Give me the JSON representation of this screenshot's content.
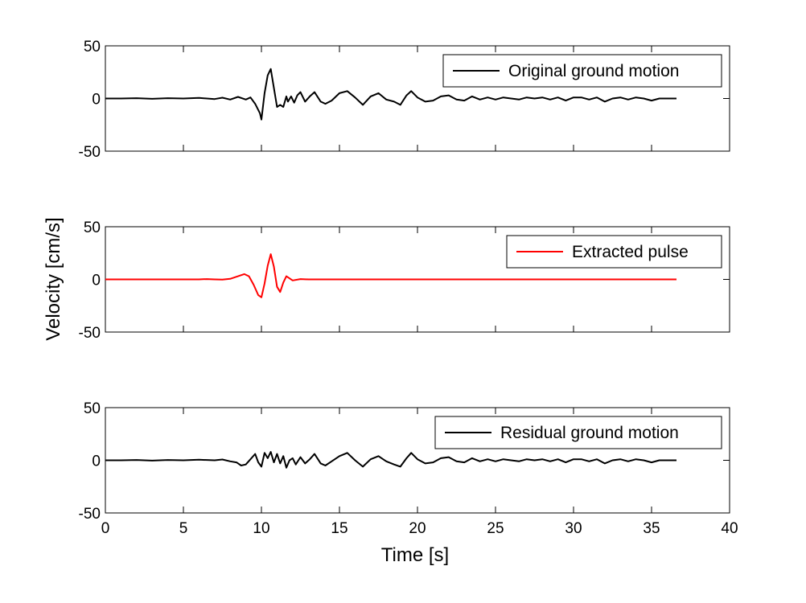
{
  "chart_data": {
    "type": "line",
    "xlabel": "Time [s]",
    "ylabel": "Velocity [cm/s]",
    "xlim": [
      0,
      40
    ],
    "ylim": [
      -50,
      50
    ],
    "xticks": [
      0,
      5,
      10,
      15,
      20,
      25,
      30,
      35,
      40
    ],
    "yticks": [
      -50,
      0,
      50
    ],
    "grid": false,
    "panels": [
      {
        "legend": "Original ground motion",
        "legend_position": "top-right",
        "color": "#000000",
        "x": [
          0,
          1,
          2,
          3,
          4,
          5,
          6,
          7,
          7.5,
          8,
          8.5,
          9,
          9.3,
          9.6,
          9.9,
          10.0,
          10.2,
          10.4,
          10.6,
          10.8,
          11.0,
          11.2,
          11.4,
          11.6,
          11.7,
          11.9,
          12.1,
          12.3,
          12.5,
          12.8,
          13.1,
          13.4,
          13.8,
          14.1,
          14.5,
          15.0,
          15.5,
          16.0,
          16.5,
          17.0,
          17.5,
          18.0,
          18.5,
          18.9,
          19.3,
          19.6,
          20.0,
          20.5,
          21.0,
          21.5,
          22.0,
          22.5,
          23.0,
          23.5,
          24.0,
          24.5,
          25.0,
          25.5,
          26.0,
          26.5,
          27.0,
          27.5,
          28.0,
          28.5,
          29.0,
          29.5,
          30.0,
          30.5,
          31.0,
          31.5,
          32.0,
          32.5,
          33.0,
          33.5,
          34.0,
          34.5,
          35.0,
          35.5,
          36.0,
          36.6
        ],
        "y": [
          0,
          0,
          0.3,
          -0.3,
          0.3,
          0,
          0.5,
          -0.5,
          0.8,
          -1,
          1.5,
          -1,
          1,
          -5,
          -14,
          -20,
          5,
          22,
          28,
          10,
          -8,
          -6,
          -8,
          2,
          -3,
          2,
          -4,
          3,
          6,
          -3,
          2,
          6,
          -3,
          -5,
          -2,
          5,
          7,
          1,
          -6,
          2,
          5,
          -1,
          -3,
          -6,
          3,
          7,
          1,
          -3,
          -2,
          2,
          3,
          -1,
          -2,
          2,
          -1,
          1,
          -1,
          1,
          0,
          -1,
          1,
          0,
          1,
          -1,
          1,
          -2,
          1,
          1,
          -1,
          1,
          -3,
          0,
          1,
          -1,
          1,
          0,
          -2,
          0,
          0,
          0
        ]
      },
      {
        "legend": "Extracted pulse",
        "legend_position": "top-right",
        "color": "#ff0000",
        "x": [
          0,
          6.0,
          6.5,
          7.0,
          7.5,
          8.0,
          8.5,
          8.9,
          9.2,
          9.5,
          9.8,
          10.0,
          10.2,
          10.4,
          10.6,
          10.8,
          11.0,
          11.2,
          11.4,
          11.6,
          11.8,
          12.0,
          12.5,
          13.0,
          14.0,
          15.0,
          20.0,
          25.0,
          30.0,
          36.6
        ],
        "y": [
          0,
          0,
          0.3,
          0,
          -0.2,
          0.5,
          3,
          5,
          3,
          -5,
          -15,
          -17,
          -4,
          13,
          24,
          12,
          -7,
          -12,
          -3,
          3,
          1,
          -1,
          0.3,
          0,
          0,
          0,
          0,
          0,
          0,
          0
        ]
      },
      {
        "legend": "Residual ground motion",
        "legend_position": "top-right",
        "color": "#000000",
        "x": [
          0,
          1,
          2,
          3,
          4,
          5,
          6,
          7,
          7.5,
          8,
          8.4,
          8.7,
          9.0,
          9.3,
          9.6,
          9.8,
          10.0,
          10.2,
          10.4,
          10.6,
          10.8,
          11.0,
          11.2,
          11.4,
          11.6,
          11.8,
          12.0,
          12.2,
          12.5,
          12.8,
          13.1,
          13.4,
          13.8,
          14.1,
          14.5,
          15.0,
          15.5,
          16.0,
          16.5,
          17.0,
          17.5,
          18.0,
          18.5,
          18.9,
          19.3,
          19.6,
          20.0,
          20.5,
          21.0,
          21.5,
          22.0,
          22.5,
          23.0,
          23.5,
          24.0,
          24.5,
          25.0,
          25.5,
          26.0,
          26.5,
          27.0,
          27.5,
          28.0,
          28.5,
          29.0,
          29.5,
          30.0,
          30.5,
          31.0,
          31.5,
          32.0,
          32.5,
          33.0,
          33.5,
          34.0,
          34.5,
          35.0,
          35.5,
          36.0,
          36.6
        ],
        "y": [
          0,
          0,
          0.3,
          -0.3,
          0.3,
          0,
          0.5,
          0,
          0.8,
          -1,
          -2,
          -5,
          -4,
          1,
          6,
          -2,
          -6,
          7,
          2,
          8,
          -2,
          6,
          -3,
          4,
          -7,
          0,
          2,
          -4,
          3,
          -3,
          1,
          6,
          -3,
          -5,
          -1,
          4,
          7,
          0,
          -6,
          1,
          4,
          -1,
          -4,
          -6,
          2,
          7,
          1,
          -3,
          -2,
          2,
          3,
          -1,
          -2,
          2,
          -1,
          1,
          -1,
          1,
          0,
          -1,
          1,
          0,
          1,
          -1,
          1,
          -2,
          1,
          1,
          -1,
          1,
          -3,
          0,
          1,
          -1,
          1,
          0,
          -2,
          0,
          0,
          0
        ]
      }
    ]
  }
}
